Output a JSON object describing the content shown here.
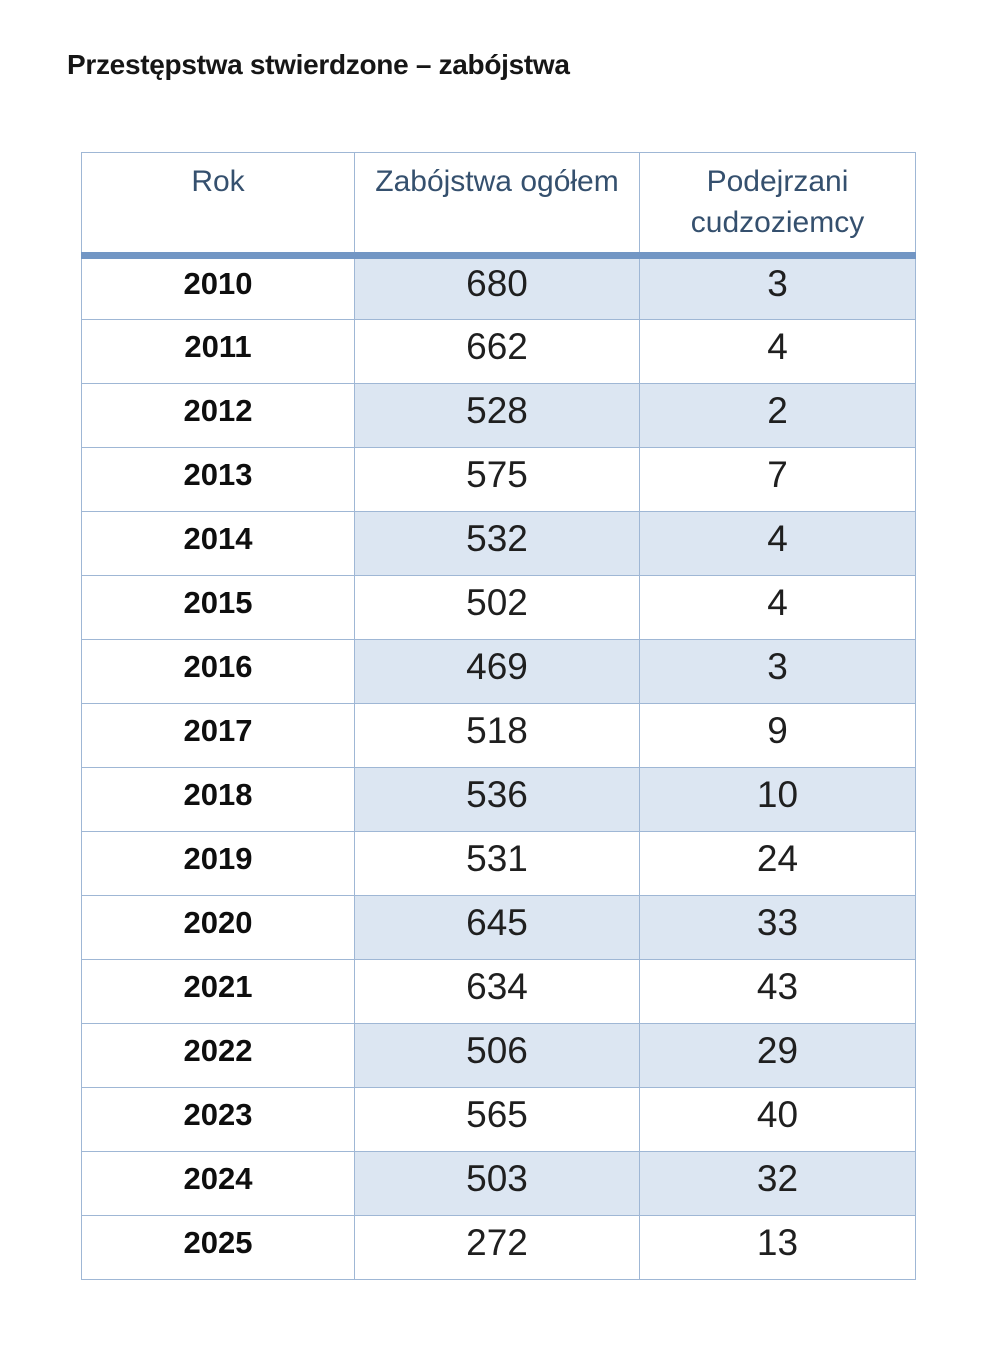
{
  "title": "Przestępstwa stwierdzone – zabójstwa",
  "table": {
    "columns": [
      "Rok",
      "Zabójstwa ogółem",
      "Podejrzani cudzoziemcy"
    ],
    "rows": [
      {
        "year": "2010",
        "total": "680",
        "foreigners": "3"
      },
      {
        "year": "2011",
        "total": "662",
        "foreigners": "4"
      },
      {
        "year": "2012",
        "total": "528",
        "foreigners": "2"
      },
      {
        "year": "2013",
        "total": "575",
        "foreigners": "7"
      },
      {
        "year": "2014",
        "total": "532",
        "foreigners": "4"
      },
      {
        "year": "2015",
        "total": "502",
        "foreigners": "4"
      },
      {
        "year": "2016",
        "total": "469",
        "foreigners": "3"
      },
      {
        "year": "2017",
        "total": "518",
        "foreigners": "9"
      },
      {
        "year": "2018",
        "total": "536",
        "foreigners": "10"
      },
      {
        "year": "2019",
        "total": "531",
        "foreigners": "24"
      },
      {
        "year": "2020",
        "total": "645",
        "foreigners": "33"
      },
      {
        "year": "2021",
        "total": "634",
        "foreigners": "43"
      },
      {
        "year": "2022",
        "total": "506",
        "foreigners": "29"
      },
      {
        "year": "2023",
        "total": "565",
        "foreigners": "40"
      },
      {
        "year": "2024",
        "total": "503",
        "foreigners": "32"
      },
      {
        "year": "2025",
        "total": "272",
        "foreigners": "13"
      }
    ]
  },
  "colors": {
    "header_text": "#35506E",
    "band": "#DCE6F2",
    "border": "#9FB7D5",
    "thick_rule": "#7296C4",
    "body_text": "#1F1F1F"
  }
}
